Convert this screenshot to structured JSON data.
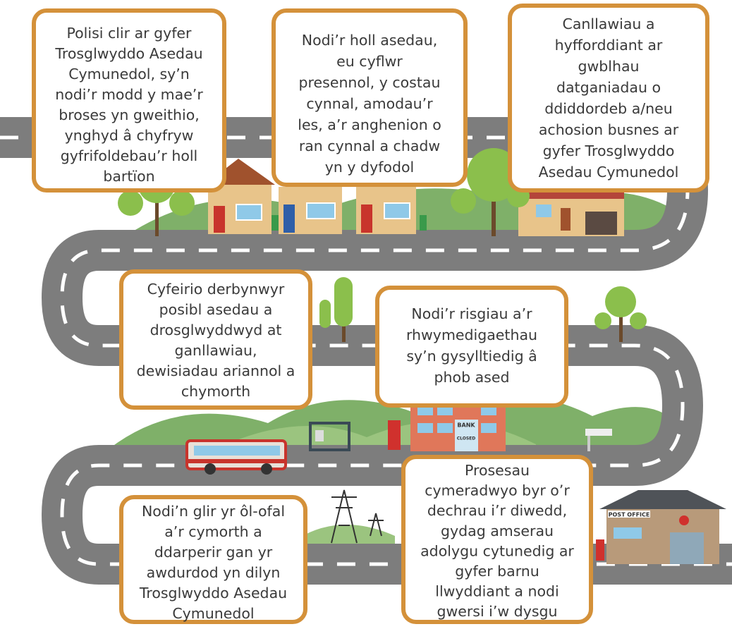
{
  "boxes": [
    {
      "lines": [
        "Polisi clir ar gyfer",
        "Trosglwyddo Asedau",
        "Cymunedol, sy’n",
        "nodi’r modd y mae’r",
        "broses yn gweithio,",
        "ynghyd â chyfryw",
        "gyfrifoldebau’r holl",
        "bartïon"
      ]
    },
    {
      "lines": [
        "Nodi’r holl asedau,",
        "eu cyflwr",
        "presennol, y costau",
        "cynnal, amodau’r",
        "les, a’r anghenion o",
        "ran cynnal a chadw",
        "yn y dyfodol"
      ]
    },
    {
      "lines": [
        "Canllawiau a",
        "hyfforddiant ar",
        "gwblhau",
        "datganiadau o",
        "ddiddordeb a/neu",
        "achosion busnes ar",
        "gyfer Trosglwyddo",
        "Asedau Cymunedol"
      ]
    },
    {
      "lines": [
        "Cyfeirio derbynwyr",
        "posibl asedau a",
        "drosglwyddwyd at",
        "ganllawiau,",
        "dewisiadau ariannol a",
        "chymorth"
      ]
    },
    {
      "lines": [
        "Nodi’r risgiau a’r",
        "rhwymedigaethau",
        "sy’n gysylltiedig â",
        "phob ased"
      ]
    },
    {
      "lines": [
        "Nodi’n glir yr ôl-ofal",
        "a’r cymorth a",
        "ddarperir gan yr",
        "awdurdod yn dilyn",
        "Trosglwyddo Asedau",
        "Cymunedol"
      ]
    },
    {
      "lines": [
        "Prosesau",
        "cymeradwyo byr o’r",
        "dechrau i’r diwedd,",
        "gydag amserau",
        "adolygu cytunedig ar",
        "gyfer barnu",
        "llwyddiant a nodi",
        "gwersi i’w dysgu"
      ]
    }
  ],
  "signs": {
    "bank": "BANK",
    "closed": "CLOSED",
    "post_office": "POST OFFICE"
  }
}
